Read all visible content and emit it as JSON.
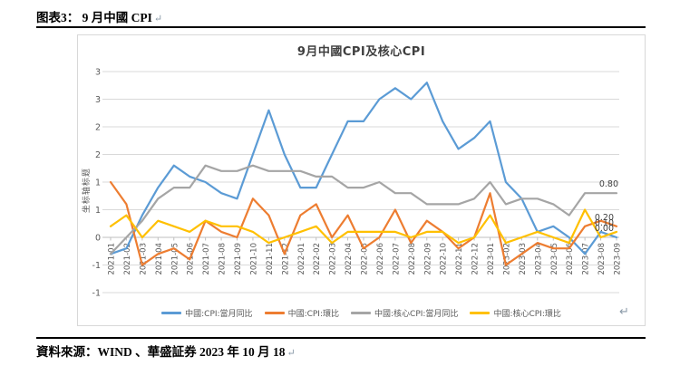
{
  "page": {
    "header": {
      "text": "图表3： 9 月中國 CPI",
      "return_mark": "↵"
    },
    "footer": {
      "text": "資料來源：WIND 、華盛証券 2023 年 10 月 18",
      "return_mark": "↵"
    },
    "chart_return_mark": "↵"
  },
  "chart_data": {
    "type": "line",
    "title": "9月中國CPI及核心CPI",
    "xlabel": "",
    "ylabel": "坐标轴标题",
    "ylim": [
      -1,
      3
    ],
    "y_tick_step": 0.5,
    "y_tick_labels": [
      "3",
      "3",
      "2",
      "2",
      "1",
      "1",
      "0",
      "-1",
      "-1"
    ],
    "grid": true,
    "legend_position": "bottom",
    "categories": [
      "2021-01",
      "2021-02",
      "2021-03",
      "2021-04",
      "2021-05",
      "2021-06",
      "2021-07",
      "2021-08",
      "2021-09",
      "2021-10",
      "2021-11",
      "2021-12",
      "2022-01",
      "2022-02",
      "2022-03",
      "2022-04",
      "2022-05",
      "2022-06",
      "2022-07",
      "2022-08",
      "2022-09",
      "2022-10",
      "2022-11",
      "2022-12",
      "2023-01",
      "2023-02",
      "2023-03",
      "2023-04",
      "2023-05",
      "2023-06",
      "2023-07",
      "2023-08",
      "2023-09"
    ],
    "series": [
      {
        "name": "中國:CPI:當月同比",
        "color": "#5B9BD5",
        "end_label": "0.00",
        "values": [
          -0.3,
          -0.2,
          0.4,
          0.9,
          1.3,
          1.1,
          1.0,
          0.8,
          0.7,
          1.5,
          2.3,
          1.5,
          0.9,
          0.9,
          1.5,
          2.1,
          2.1,
          2.5,
          2.7,
          2.5,
          2.8,
          2.1,
          1.6,
          1.8,
          2.1,
          1.0,
          0.7,
          0.1,
          0.2,
          0.0,
          -0.3,
          0.1,
          0.0
        ]
      },
      {
        "name": "中國:CPI:環比",
        "color": "#ED7D31",
        "end_label": "0.20",
        "values": [
          1.0,
          0.6,
          -0.5,
          -0.3,
          -0.2,
          -0.4,
          0.3,
          0.1,
          0.0,
          0.7,
          0.4,
          -0.3,
          0.4,
          0.6,
          0.0,
          0.4,
          -0.2,
          0.0,
          0.5,
          -0.1,
          0.3,
          0.1,
          -0.2,
          0.0,
          0.8,
          -0.5,
          -0.3,
          -0.1,
          -0.2,
          -0.2,
          0.2,
          0.3,
          0.2
        ]
      },
      {
        "name": "中國:核心CPI:當月同比",
        "color": "#A5A5A5",
        "end_label": "0.80",
        "values": [
          -0.3,
          0.0,
          0.3,
          0.7,
          0.9,
          0.9,
          1.3,
          1.2,
          1.2,
          1.3,
          1.2,
          1.2,
          1.2,
          1.1,
          1.1,
          0.9,
          0.9,
          1.0,
          0.8,
          0.8,
          0.6,
          0.6,
          0.6,
          0.7,
          1.0,
          0.6,
          0.7,
          0.7,
          0.6,
          0.4,
          0.8,
          0.8,
          0.8
        ]
      },
      {
        "name": "中國:核心CPI:環比",
        "color": "#FFC000",
        "end_label": "0.10",
        "values": [
          0.2,
          0.4,
          0.0,
          0.3,
          0.2,
          0.1,
          0.3,
          0.2,
          0.2,
          0.1,
          -0.1,
          0.0,
          0.1,
          0.2,
          -0.1,
          0.1,
          0.1,
          0.1,
          0.1,
          0.0,
          0.1,
          0.1,
          -0.1,
          0.0,
          0.4,
          -0.1,
          0.0,
          0.1,
          0.0,
          -0.1,
          0.5,
          0.0,
          0.1
        ]
      }
    ],
    "end_label_color": "#404040",
    "gridline_color": "#D9D9D9",
    "axis_text_color": "#595959"
  }
}
